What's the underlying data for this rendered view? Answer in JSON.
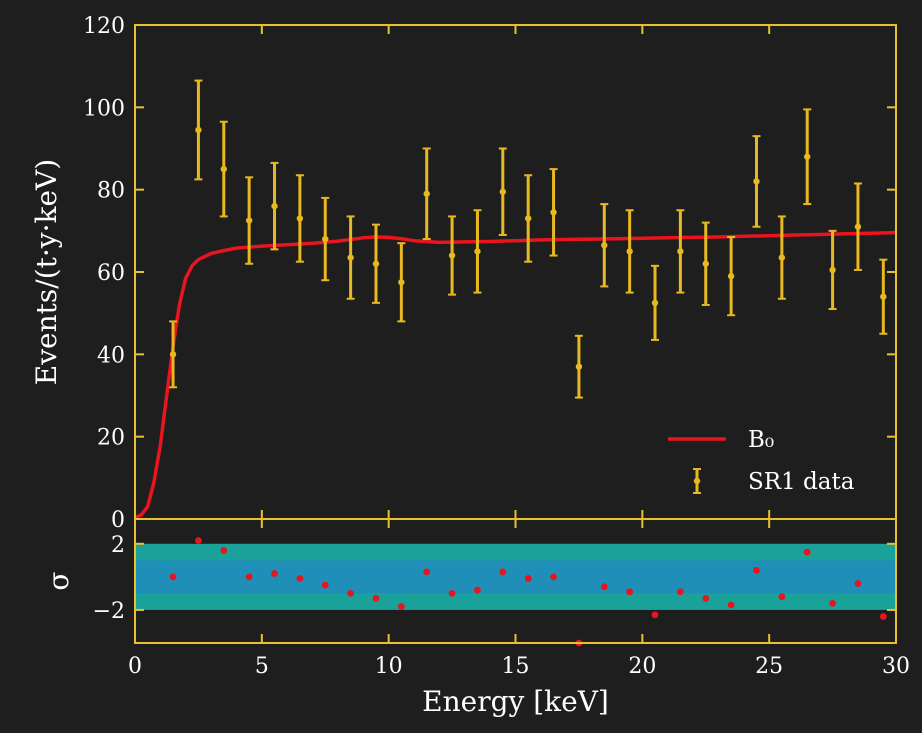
{
  "chart_data": [
    {
      "type": "scatter",
      "panel": "main",
      "xlabel": "Energy [keV]",
      "ylabel": "Events/(t·y·keV)",
      "xlim": [
        0,
        30
      ],
      "ylim": [
        0,
        120
      ],
      "xticks": [
        0,
        5,
        10,
        15,
        20,
        25,
        30
      ],
      "yticks": [
        0,
        20,
        40,
        60,
        80,
        100,
        120
      ],
      "grid": false,
      "legend_position": "lower-right",
      "series": [
        {
          "name": "SR1 data",
          "kind": "errorbar",
          "color": "#f2b81c",
          "x": [
            1.5,
            2.5,
            3.5,
            4.5,
            5.5,
            6.5,
            7.5,
            8.5,
            9.5,
            10.5,
            11.5,
            12.5,
            13.5,
            14.5,
            15.5,
            16.5,
            17.5,
            18.5,
            19.5,
            20.5,
            21.5,
            22.5,
            23.5,
            24.5,
            25.5,
            26.5,
            27.5,
            28.5,
            29.5
          ],
          "y": [
            40.0,
            94.5,
            85.0,
            72.5,
            76.0,
            73.0,
            68.0,
            63.5,
            62.0,
            57.5,
            79.0,
            64.0,
            65.0,
            79.5,
            73.0,
            74.5,
            37.0,
            66.5,
            65.0,
            52.5,
            65.0,
            62.0,
            59.0,
            82.0,
            63.5,
            88.0,
            60.5,
            71.0,
            54.0
          ],
          "yerr": [
            8.0,
            12.0,
            11.5,
            10.5,
            10.5,
            10.5,
            10.0,
            10.0,
            9.5,
            9.5,
            11.0,
            9.5,
            10.0,
            10.5,
            10.5,
            10.5,
            7.5,
            10.0,
            10.0,
            9.0,
            10.0,
            10.0,
            9.5,
            11.0,
            10.0,
            11.5,
            9.5,
            10.5,
            9.0
          ]
        },
        {
          "name": "B₀",
          "kind": "line",
          "color": "#e8141e",
          "x": [
            0,
            0.25,
            0.5,
            0.75,
            1.0,
            1.25,
            1.5,
            1.75,
            2.0,
            2.25,
            2.5,
            3.0,
            3.5,
            4.0,
            5.0,
            6.0,
            7.0,
            8.0,
            9.0,
            9.5,
            10.0,
            10.5,
            11.0,
            12.0,
            13.0,
            14.0,
            15.0,
            16.0,
            17.0,
            18.0,
            19.0,
            20.0,
            21.0,
            22.0,
            23.0,
            24.0,
            25.0,
            26.0,
            27.0,
            28.0,
            29.0,
            30.0
          ],
          "y": [
            0.3,
            1.0,
            3.0,
            9.0,
            18.0,
            30.0,
            42.0,
            52.0,
            58.5,
            61.5,
            63.0,
            64.5,
            65.2,
            65.8,
            66.3,
            66.6,
            67.0,
            67.5,
            68.3,
            68.5,
            68.4,
            68.1,
            67.6,
            67.2,
            67.3,
            67.4,
            67.6,
            67.8,
            67.9,
            68.0,
            68.1,
            68.2,
            68.3,
            68.4,
            68.5,
            68.7,
            68.8,
            69.0,
            69.1,
            69.3,
            69.4,
            69.6
          ]
        }
      ]
    },
    {
      "type": "scatter",
      "panel": "residual",
      "xlabel": "Energy [keV]",
      "ylabel": "σ",
      "xlim": [
        0,
        30
      ],
      "ylim": [
        -4,
        3.5
      ],
      "yticks": [
        -2,
        2
      ],
      "ytick_labels": [
        "−2",
        "2"
      ],
      "bands": [
        {
          "from": -2,
          "to": 2,
          "color": "#1aa19a"
        },
        {
          "from": -1,
          "to": 1,
          "color": "#1f8fb8"
        }
      ],
      "series": [
        {
          "name": "",
          "color": "#e8141e",
          "x": [
            1.5,
            2.5,
            3.5,
            4.5,
            5.5,
            6.5,
            7.5,
            8.5,
            9.5,
            10.5,
            11.5,
            12.5,
            13.5,
            14.5,
            15.5,
            16.5,
            17.5,
            18.5,
            19.5,
            20.5,
            21.5,
            22.5,
            23.5,
            24.5,
            25.5,
            26.5,
            27.5,
            28.5,
            29.5
          ],
          "y": [
            0.0,
            2.2,
            1.6,
            0.0,
            0.2,
            -0.1,
            -0.5,
            -1.0,
            -1.3,
            -1.8,
            0.3,
            -1.0,
            -0.8,
            0.3,
            -0.1,
            0.0,
            -4.0,
            -0.6,
            -0.9,
            -2.3,
            -0.9,
            -1.3,
            -1.7,
            0.4,
            -1.2,
            1.5,
            -1.6,
            -0.4,
            -2.4
          ]
        }
      ]
    }
  ]
}
